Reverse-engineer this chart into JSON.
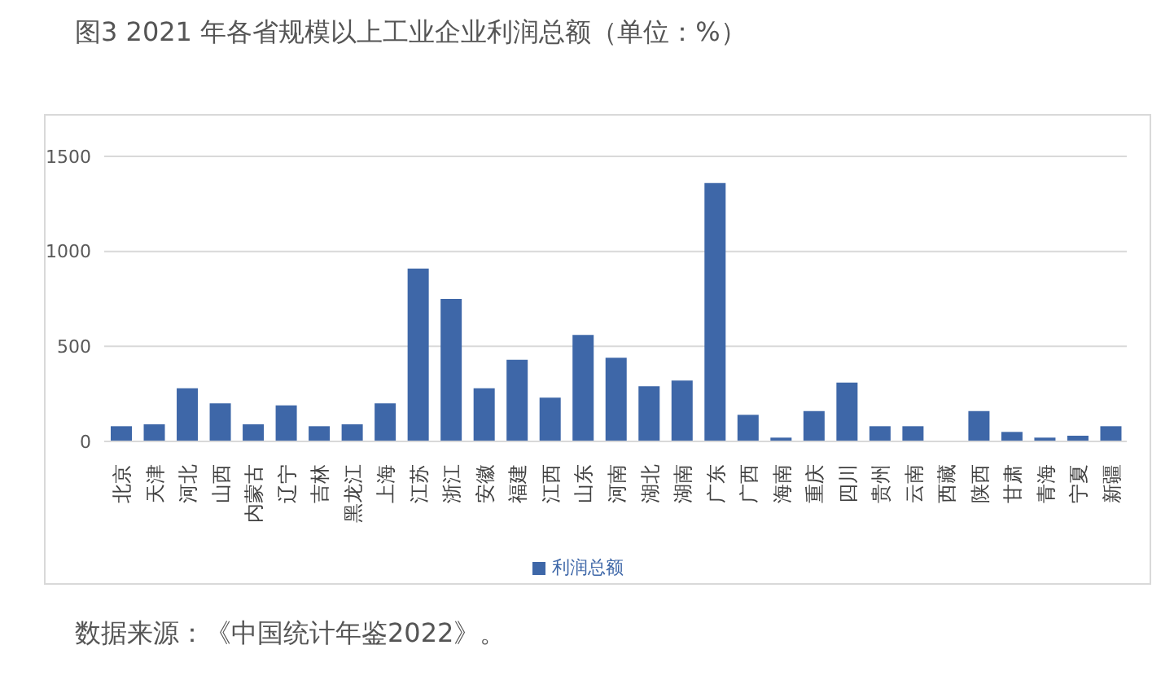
{
  "chart_data": {
    "type": "bar",
    "title": "图3 2021 年各省规模以上工业企业利润总额（单位：%）",
    "categories": [
      "北京",
      "天津",
      "河北",
      "山西",
      "内蒙古",
      "辽宁",
      "吉林",
      "黑龙江",
      "上海",
      "江苏",
      "浙江",
      "安徽",
      "福建",
      "江西",
      "山东",
      "河南",
      "湖北",
      "湖南",
      "广东",
      "广西",
      "海南",
      "重庆",
      "四川",
      "贵州",
      "云南",
      "西藏",
      "陕西",
      "甘肃",
      "青海",
      "宁夏",
      "新疆"
    ],
    "series": [
      {
        "name": "利润总额",
        "color": "#3e67a8",
        "values": [
          80,
          90,
          280,
          200,
          90,
          190,
          80,
          90,
          200,
          910,
          750,
          280,
          430,
          230,
          560,
          440,
          290,
          320,
          1360,
          140,
          20,
          160,
          310,
          80,
          80,
          null,
          160,
          50,
          20,
          30,
          80
        ]
      }
    ],
    "ylim": [
      0,
      1500
    ],
    "yticks": [
      0,
      500,
      1000,
      1500
    ],
    "grid": "y",
    "legend": "bottom",
    "annotations": [
      "数据来源：《中国统计年鉴2022》。"
    ]
  }
}
